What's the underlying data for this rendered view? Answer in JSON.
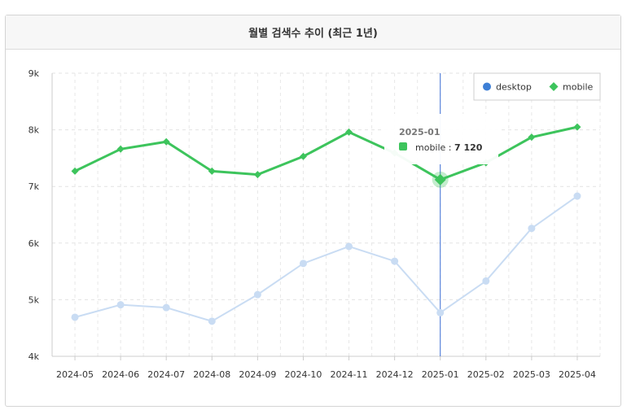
{
  "panel": {
    "title": "월별 검색수 추이 (최근 1년)"
  },
  "chart_data": {
    "type": "line",
    "title": "월별 검색수 추이 (최근 1년)",
    "categories": [
      "2024-05",
      "2024-06",
      "2024-07",
      "2024-08",
      "2024-09",
      "2024-10",
      "2024-11",
      "2024-12",
      "2025-01",
      "2025-02",
      "2025-03",
      "2025-04"
    ],
    "y_tick_labels": [
      "4k",
      "5k",
      "6k",
      "7k",
      "8k",
      "9k"
    ],
    "y_tick_values": [
      4000,
      5000,
      6000,
      7000,
      8000,
      9000
    ],
    "ylim": [
      4000,
      9000
    ],
    "grid": true,
    "legend_position": "top-right",
    "series": [
      {
        "name": "desktop",
        "color": "#3d7fd6",
        "faded_color": "#c9dcf3",
        "marker": "circle",
        "values": [
          4690,
          4910,
          4860,
          4620,
          5090,
          5640,
          5940,
          5680,
          4770,
          5330,
          6260,
          6830
        ]
      },
      {
        "name": "mobile",
        "color": "#3dc45c",
        "marker": "diamond",
        "values": [
          7270,
          7660,
          7790,
          7270,
          7210,
          7530,
          7960,
          7590,
          7120,
          7420,
          7870,
          8050
        ]
      }
    ],
    "tooltip": {
      "category": "2025-01",
      "series_name": "mobile",
      "separator": ":",
      "value_text": "7 120"
    }
  }
}
